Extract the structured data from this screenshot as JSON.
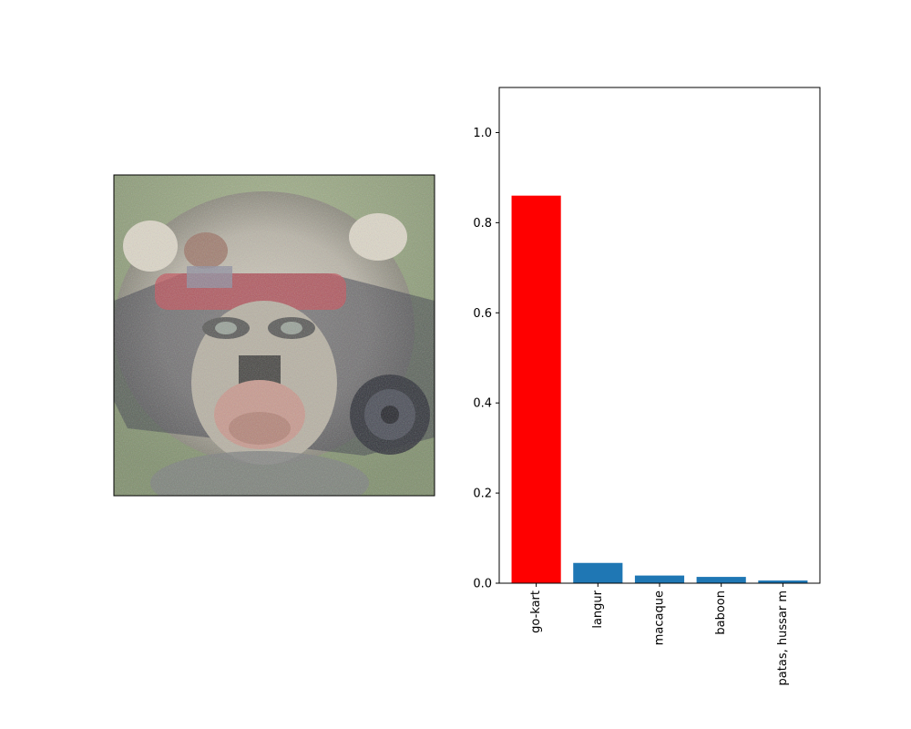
{
  "image_panel": {
    "subject": "monkey face blended with a go-kart (adversarial image)",
    "colors": {
      "sky": "#8fa07a",
      "fur": "#c9c3b3",
      "fur_dark": "#6f6a60",
      "skin": "#c99a8f",
      "kart": "#3a3d48",
      "kart_red": "#c4505a",
      "noise": "#6c7a8a"
    }
  },
  "chart_data": {
    "type": "bar",
    "categories": [
      "go-kart",
      "langur",
      "macaque",
      "baboon",
      "patas, hussar m"
    ],
    "values": [
      0.86,
      0.045,
      0.017,
      0.014,
      0.006
    ],
    "colors": [
      "#ff0000",
      "#1f77b4",
      "#1f77b4",
      "#1f77b4",
      "#1f77b4"
    ],
    "ylim": [
      0,
      1.1
    ],
    "yticks": [
      0.0,
      0.2,
      0.4,
      0.6,
      0.8,
      1.0
    ],
    "ytick_labels": [
      "0.0",
      "0.2",
      "0.4",
      "0.6",
      "0.8",
      "1.0"
    ],
    "xtick_rotation": "vertical",
    "grid": false,
    "legend": "none",
    "title": "",
    "xlabel": "",
    "ylabel": ""
  }
}
